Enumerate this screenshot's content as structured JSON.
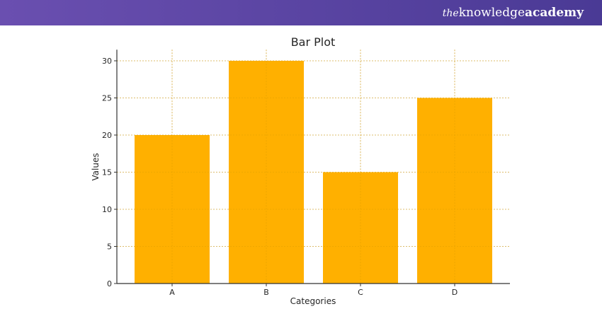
{
  "brand": {
    "prefix": "the",
    "name_light": "knowledge",
    "name_bold": "academy"
  },
  "colors": {
    "banner_start": "#6a4fb0",
    "banner_end": "#4a3a95",
    "bar": "#ffb000",
    "grid": "#cccccc",
    "axis": "#333333",
    "text": "#262626"
  },
  "chart_data": {
    "type": "bar",
    "title": "Bar Plot",
    "xlabel": "Categories",
    "ylabel": "Values",
    "categories": [
      "A",
      "B",
      "C",
      "D"
    ],
    "values": [
      20,
      30,
      15,
      25
    ],
    "ylim": [
      0,
      31.5
    ],
    "yticks": [
      0,
      5,
      10,
      15,
      20,
      25,
      30
    ],
    "grid": true
  }
}
